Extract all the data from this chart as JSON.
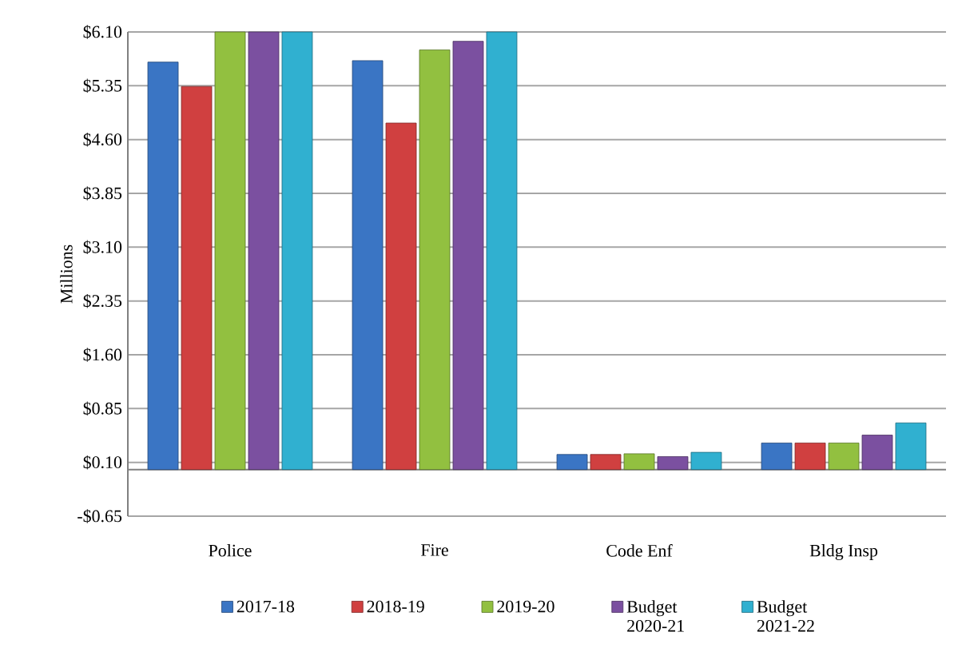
{
  "chart_data": {
    "type": "bar",
    "ylabel": "Millions",
    "categories": [
      "Police",
      "Fire",
      "Code Enf",
      "Bldg Insp"
    ],
    "series": [
      {
        "name": "2017-18",
        "color": "#3a75c4",
        "values": [
          5.68,
          5.7,
          0.21,
          0.37
        ]
      },
      {
        "name": "2018-19",
        "color": "#d04040",
        "values": [
          5.34,
          4.83,
          0.21,
          0.37
        ]
      },
      {
        "name": "2019-20",
        "color": "#92c040",
        "values": [
          6.1,
          5.85,
          0.22,
          0.37
        ]
      },
      {
        "name": "Budget 2020-21",
        "color": "#7b50a0",
        "values": [
          6.1,
          5.97,
          0.18,
          0.48
        ]
      },
      {
        "name": "Budget 2021-22",
        "color": "#30b0d0",
        "values": [
          6.1,
          6.1,
          0.24,
          0.65
        ]
      }
    ],
    "ylim": [
      -0.65,
      6.1
    ],
    "yticks": [
      {
        "value": -0.65,
        "label": "-$0.65"
      },
      {
        "value": 0.1,
        "label": "$0.10"
      },
      {
        "value": 0.85,
        "label": "$0.85"
      },
      {
        "value": 1.6,
        "label": "$1.60"
      },
      {
        "value": 2.35,
        "label": "$2.35"
      },
      {
        "value": 3.1,
        "label": "$3.10"
      },
      {
        "value": 3.85,
        "label": "$3.85"
      },
      {
        "value": 4.6,
        "label": "$4.60"
      },
      {
        "value": 5.35,
        "label": "$5.35"
      },
      {
        "value": 6.1,
        "label": "$6.10"
      }
    ],
    "grid": "y",
    "legend": "bottom"
  }
}
